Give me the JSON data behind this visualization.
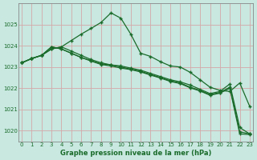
{
  "xlabel": "Graphe pression niveau de la mer (hPa)",
  "background_color": "#c8e8e0",
  "grid_color": "#b0d4cc",
  "line_color": "#1a6b2a",
  "ylim": [
    1019.5,
    1026.0
  ],
  "xlim": [
    -0.3,
    23.3
  ],
  "yticks": [
    1020,
    1021,
    1022,
    1023,
    1024,
    1025
  ],
  "xticks": [
    0,
    1,
    2,
    3,
    4,
    5,
    6,
    7,
    8,
    9,
    10,
    11,
    12,
    13,
    14,
    15,
    16,
    17,
    18,
    19,
    20,
    21,
    22,
    23
  ],
  "series": {
    "s1": [
      1023.2,
      1023.4,
      1023.6,
      1023.9,
      1024.0,
      1024.3,
      1024.6,
      1024.85,
      1025.15,
      1025.6,
      1025.3,
      1024.6,
      1023.7,
      1023.55,
      1023.3,
      1023.1,
      1023.05,
      1022.8,
      1022.4,
      1022.1,
      1021.95,
      1021.9,
      1022.3,
      1021.2
    ],
    "s2": [
      1023.2,
      1023.4,
      1023.6,
      1023.9,
      1024.0,
      1023.8,
      1023.6,
      1023.4,
      1023.3,
      1023.2,
      1023.1,
      1023.0,
      1022.9,
      1022.75,
      1022.6,
      1022.45,
      1022.35,
      1022.2,
      1022.0,
      1021.8,
      1021.9,
      1022.25,
      1020.2,
      1019.85
    ],
    "s3": [
      1023.2,
      1023.4,
      1023.6,
      1024.0,
      1023.85,
      1023.7,
      1023.5,
      1023.35,
      1023.2,
      1023.15,
      1023.05,
      1022.95,
      1022.85,
      1022.7,
      1022.55,
      1022.4,
      1022.3,
      1022.1,
      1021.95,
      1021.75,
      1021.85,
      1022.1,
      1020.1,
      1019.85
    ],
    "s4": [
      1023.2,
      1023.4,
      1023.6,
      1024.0,
      1023.85,
      1023.65,
      1023.45,
      1023.3,
      1023.15,
      1023.1,
      1023.0,
      1022.9,
      1022.8,
      1022.65,
      1022.5,
      1022.35,
      1022.25,
      1022.05,
      1021.9,
      1021.7,
      1021.8,
      1022.0,
      1019.9,
      1019.85
    ]
  }
}
